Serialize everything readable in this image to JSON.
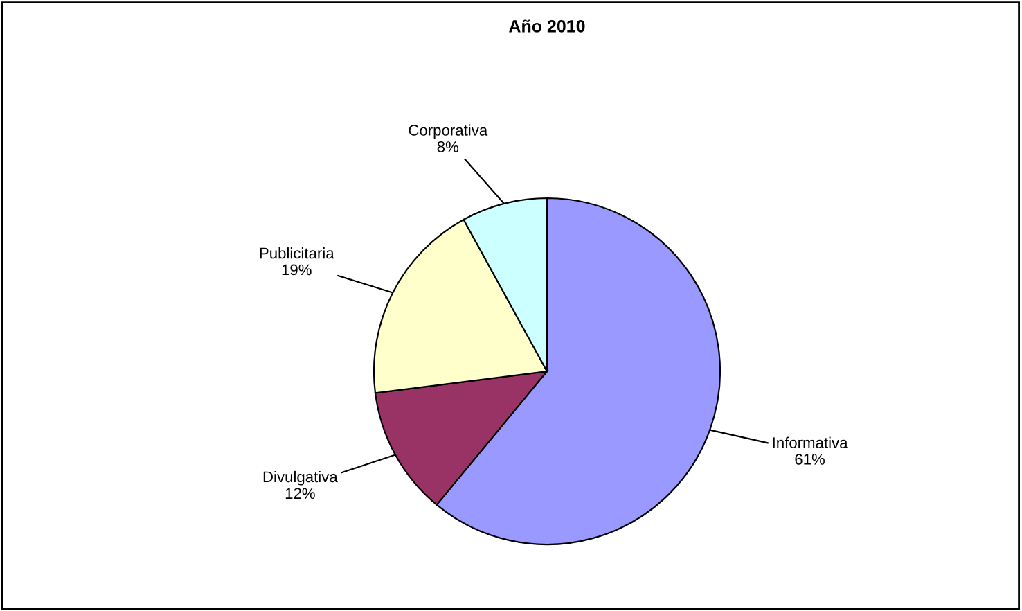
{
  "chart_data": {
    "type": "pie",
    "title": "Año 2010",
    "categories": [
      "Informativa",
      "Divulgativa",
      "Publicitaria",
      "Corporativa"
    ],
    "values": [
      61,
      12,
      19,
      8
    ],
    "value_labels": [
      "61%",
      "12%",
      "19%",
      "8%"
    ],
    "colors": [
      "#9999ff",
      "#993366",
      "#ffffcc",
      "#ccffff"
    ],
    "legend": false
  }
}
